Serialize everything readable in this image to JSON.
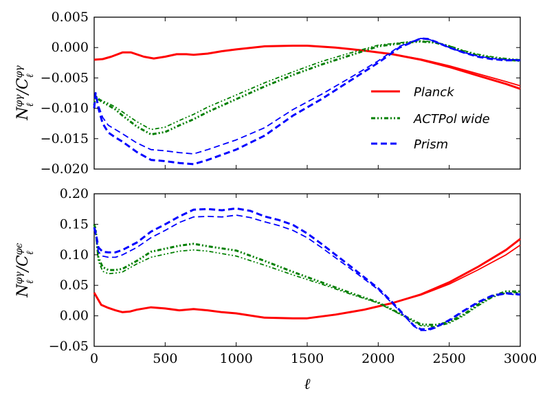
{
  "chart_data": [
    {
      "type": "line",
      "panel": "top",
      "ylabel": "N_ℓ^{φγ} / C_ℓ^{φγ}",
      "ylabel_parts": {
        "main1": "N",
        "main2": "/C",
        "sup": "φγ",
        "sub": "ℓ"
      },
      "xlim": [
        0,
        3000
      ],
      "ylim": [
        -0.02,
        0.005
      ],
      "xticks": [
        0,
        500,
        1000,
        1500,
        2000,
        2500,
        3000
      ],
      "yticks": [
        -0.02,
        -0.015,
        -0.01,
        -0.005,
        0.0,
        0.005
      ],
      "ytick_labels": [
        "−0.020",
        "−0.015",
        "−0.010",
        "−0.005",
        "0.000",
        "0.005"
      ],
      "grid": false,
      "legend": {
        "location": "right",
        "entries": [
          {
            "label": "Planck",
            "color": "#ff0000",
            "style": "solid"
          },
          {
            "label": "ACTPol wide",
            "color": "#007f00",
            "style": "dashdot"
          },
          {
            "label": "Prism",
            "color": "#0000ff",
            "style": "dashed"
          }
        ]
      },
      "series": [
        {
          "name": "Planck",
          "color": "#ff0000",
          "style": "solid",
          "width": 3,
          "x": [
            0,
            60,
            120,
            200,
            260,
            350,
            420,
            500,
            580,
            650,
            700,
            800,
            900,
            1000,
            1200,
            1400,
            1500,
            1700,
            1900,
            2100,
            2300,
            2500,
            2700,
            2900,
            3000
          ],
          "y": [
            -0.002,
            -0.0019,
            -0.0015,
            -0.0008,
            -0.0008,
            -0.0015,
            -0.0018,
            -0.0015,
            -0.0011,
            -0.0011,
            -0.0012,
            -0.001,
            -0.0006,
            -0.0003,
            0.0002,
            0.0003,
            0.0003,
            0.0,
            -0.0005,
            -0.0011,
            -0.002,
            -0.0032,
            -0.0046,
            -0.006,
            -0.0068
          ]
        },
        {
          "name": "Planck (variant)",
          "color": "#ff0000",
          "style": "solid",
          "width": 1.8,
          "x": [
            0,
            60,
            120,
            200,
            260,
            350,
            420,
            500,
            580,
            650,
            700,
            800,
            900,
            1000,
            1200,
            1400,
            1500,
            1700,
            1900,
            2100,
            2300,
            2500,
            2700,
            2900,
            3000
          ],
          "y": [
            -0.002,
            -0.0019,
            -0.0015,
            -0.0008,
            -0.0008,
            -0.0015,
            -0.0018,
            -0.0015,
            -0.0011,
            -0.0011,
            -0.0012,
            -0.001,
            -0.0006,
            -0.0003,
            0.0002,
            0.0003,
            0.0003,
            0.0,
            -0.0005,
            -0.0011,
            -0.0019,
            -0.003,
            -0.0043,
            -0.0056,
            -0.0063
          ]
        },
        {
          "name": "ACTPol wide",
          "color": "#007f00",
          "style": "dashdot",
          "width": 3,
          "x": [
            0,
            10,
            30,
            60,
            100,
            150,
            200,
            300,
            400,
            500,
            600,
            700,
            800,
            1000,
            1200,
            1400,
            1600,
            1800,
            2000,
            2200,
            2300,
            2400,
            2500,
            2600,
            2700,
            2800,
            2900,
            3000
          ],
          "y": [
            -0.0095,
            -0.008,
            -0.0085,
            -0.009,
            -0.0095,
            -0.0102,
            -0.0112,
            -0.013,
            -0.0143,
            -0.0139,
            -0.0128,
            -0.0118,
            -0.0106,
            -0.0085,
            -0.0064,
            -0.0045,
            -0.0028,
            -0.0013,
            0.0002,
            0.0008,
            0.001,
            0.0008,
            0.0002,
            -0.0006,
            -0.0013,
            -0.0017,
            -0.002,
            -0.0022
          ]
        },
        {
          "name": "ACTPol wide (variant)",
          "color": "#007f00",
          "style": "dashdot",
          "width": 1.8,
          "x": [
            0,
            10,
            30,
            60,
            100,
            150,
            200,
            300,
            400,
            500,
            600,
            700,
            800,
            1000,
            1200,
            1400,
            1600,
            1800,
            2000,
            2200,
            2300,
            2400,
            2500,
            2600,
            2700,
            2800,
            2900,
            3000
          ],
          "y": [
            -0.0095,
            -0.008,
            -0.0084,
            -0.0088,
            -0.0092,
            -0.0098,
            -0.0106,
            -0.0122,
            -0.0135,
            -0.0131,
            -0.012,
            -0.011,
            -0.0098,
            -0.0078,
            -0.0058,
            -0.004,
            -0.0023,
            -0.0009,
            0.0004,
            0.0009,
            0.0011,
            0.0009,
            0.0003,
            -0.0005,
            -0.0011,
            -0.0015,
            -0.0018,
            -0.002
          ]
        },
        {
          "name": "Prism",
          "color": "#0000ff",
          "style": "dashed",
          "width": 3,
          "x": [
            0,
            10,
            30,
            60,
            100,
            150,
            200,
            300,
            400,
            500,
            600,
            700,
            800,
            1000,
            1200,
            1400,
            1600,
            1800,
            2000,
            2150,
            2250,
            2300,
            2350,
            2400,
            2500,
            2600,
            2700,
            2800,
            2900,
            3000
          ],
          "y": [
            -0.01,
            -0.0075,
            -0.01,
            -0.0125,
            -0.014,
            -0.0148,
            -0.0155,
            -0.0172,
            -0.0185,
            -0.0187,
            -0.019,
            -0.0192,
            -0.0185,
            -0.0168,
            -0.0145,
            -0.0112,
            -0.0085,
            -0.0055,
            -0.0025,
            0.0,
            0.001,
            0.0015,
            0.0014,
            0.001,
            0.0,
            -0.0008,
            -0.0015,
            -0.0019,
            -0.0021,
            -0.0021
          ]
        },
        {
          "name": "Prism (variant)",
          "color": "#0000ff",
          "style": "dashed",
          "width": 1.8,
          "x": [
            0,
            10,
            30,
            60,
            100,
            150,
            200,
            300,
            400,
            500,
            600,
            700,
            800,
            1000,
            1200,
            1400,
            1600,
            1800,
            2000,
            2150,
            2250,
            2300,
            2350,
            2400,
            2500,
            2600,
            2700,
            2800,
            2900,
            3000
          ],
          "y": [
            -0.01,
            -0.0075,
            -0.0095,
            -0.0115,
            -0.0128,
            -0.0135,
            -0.0142,
            -0.0157,
            -0.0168,
            -0.017,
            -0.0173,
            -0.0175,
            -0.0168,
            -0.0152,
            -0.0132,
            -0.0102,
            -0.0077,
            -0.005,
            -0.0022,
            0.0002,
            0.0011,
            0.0015,
            0.0014,
            0.001,
            0.0,
            -0.0008,
            -0.0014,
            -0.0018,
            -0.002,
            -0.002
          ]
        }
      ]
    },
    {
      "type": "line",
      "panel": "bottom",
      "ylabel": "N_ℓ^{φγ} / C_ℓ^{φε}",
      "ylabel_parts": {
        "main1": "N",
        "main2": "/C",
        "sup1": "φγ",
        "sup2": "φϵ",
        "sub": "ℓ"
      },
      "xlabel": "ℓ",
      "xlim": [
        0,
        3000
      ],
      "ylim": [
        -0.05,
        0.2
      ],
      "xticks": [
        0,
        500,
        1000,
        1500,
        2000,
        2500,
        3000
      ],
      "xtick_labels": [
        "0",
        "500",
        "1000",
        "1500",
        "2000",
        "2500",
        "3000"
      ],
      "yticks": [
        -0.05,
        0.0,
        0.05,
        0.1,
        0.15,
        0.2
      ],
      "ytick_labels": [
        "−0.05",
        "0.00",
        "0.05",
        "0.10",
        "0.15",
        "0.20"
      ],
      "grid": false,
      "series": [
        {
          "name": "Planck",
          "color": "#ff0000",
          "style": "solid",
          "width": 3,
          "x": [
            0,
            20,
            50,
            100,
            150,
            200,
            250,
            300,
            400,
            500,
            600,
            700,
            800,
            900,
            1000,
            1200,
            1400,
            1500,
            1700,
            1900,
            2100,
            2300,
            2500,
            2700,
            2900,
            3000
          ],
          "y": [
            0.038,
            0.03,
            0.018,
            0.013,
            0.009,
            0.006,
            0.007,
            0.01,
            0.014,
            0.012,
            0.009,
            0.011,
            0.009,
            0.006,
            0.004,
            -0.003,
            -0.004,
            -0.004,
            0.002,
            0.01,
            0.021,
            0.035,
            0.055,
            0.08,
            0.108,
            0.126
          ]
        },
        {
          "name": "Planck (variant)",
          "color": "#ff0000",
          "style": "solid",
          "width": 1.8,
          "x": [
            0,
            20,
            50,
            100,
            150,
            200,
            250,
            300,
            400,
            500,
            600,
            700,
            800,
            900,
            1000,
            1200,
            1400,
            1500,
            1700,
            1900,
            2100,
            2300,
            2500,
            2700,
            2900,
            3000
          ],
          "y": [
            0.038,
            0.03,
            0.018,
            0.013,
            0.009,
            0.006,
            0.007,
            0.01,
            0.014,
            0.012,
            0.009,
            0.011,
            0.009,
            0.006,
            0.004,
            -0.003,
            -0.004,
            -0.004,
            0.002,
            0.01,
            0.021,
            0.034,
            0.052,
            0.075,
            0.1,
            0.116
          ]
        },
        {
          "name": "ACTPol wide",
          "color": "#007f00",
          "style": "dashdot",
          "width": 3,
          "x": [
            0,
            10,
            30,
            60,
            100,
            150,
            200,
            300,
            400,
            500,
            600,
            700,
            800,
            1000,
            1200,
            1400,
            1600,
            1800,
            2000,
            2100,
            2200,
            2300,
            2400,
            2500,
            2600,
            2700,
            2800,
            2900,
            3000
          ],
          "y": [
            0.15,
            0.142,
            0.095,
            0.08,
            0.075,
            0.075,
            0.077,
            0.09,
            0.105,
            0.11,
            0.115,
            0.118,
            0.114,
            0.107,
            0.09,
            0.072,
            0.055,
            0.038,
            0.022,
            0.01,
            -0.002,
            -0.014,
            -0.015,
            -0.01,
            0.002,
            0.018,
            0.032,
            0.04,
            0.04
          ]
        },
        {
          "name": "ACTPol wide (variant)",
          "color": "#007f00",
          "style": "dashdot",
          "width": 1.8,
          "x": [
            0,
            10,
            30,
            60,
            100,
            150,
            200,
            300,
            400,
            500,
            600,
            700,
            800,
            1000,
            1200,
            1400,
            1600,
            1800,
            2000,
            2100,
            2200,
            2300,
            2400,
            2500,
            2600,
            2700,
            2800,
            2900,
            3000
          ],
          "y": [
            0.145,
            0.135,
            0.09,
            0.073,
            0.069,
            0.07,
            0.072,
            0.085,
            0.096,
            0.101,
            0.106,
            0.108,
            0.106,
            0.098,
            0.083,
            0.067,
            0.052,
            0.036,
            0.021,
            0.009,
            -0.003,
            -0.016,
            -0.018,
            -0.012,
            0.0,
            0.016,
            0.03,
            0.038,
            0.038
          ]
        },
        {
          "name": "Prism",
          "color": "#0000ff",
          "style": "dashed",
          "width": 3,
          "x": [
            0,
            10,
            30,
            60,
            100,
            150,
            200,
            300,
            400,
            500,
            600,
            700,
            800,
            900,
            1000,
            1100,
            1200,
            1300,
            1400,
            1500,
            1600,
            1800,
            2000,
            2100,
            2200,
            2250,
            2300,
            2350,
            2400,
            2500,
            2600,
            2700,
            2800,
            2900,
            3000
          ],
          "y": [
            0.145,
            0.138,
            0.112,
            0.105,
            0.104,
            0.104,
            0.108,
            0.12,
            0.138,
            0.15,
            0.163,
            0.174,
            0.175,
            0.173,
            0.176,
            0.172,
            0.163,
            0.157,
            0.149,
            0.135,
            0.118,
            0.082,
            0.045,
            0.022,
            -0.003,
            -0.016,
            -0.022,
            -0.022,
            -0.019,
            -0.007,
            0.008,
            0.022,
            0.033,
            0.037,
            0.035
          ]
        },
        {
          "name": "Prism (variant)",
          "color": "#0000ff",
          "style": "dashed",
          "width": 1.8,
          "x": [
            0,
            10,
            30,
            60,
            100,
            150,
            200,
            300,
            400,
            500,
            600,
            700,
            800,
            900,
            1000,
            1100,
            1200,
            1300,
            1400,
            1500,
            1600,
            1800,
            2000,
            2100,
            2200,
            2250,
            2300,
            2350,
            2400,
            2500,
            2600,
            2700,
            2800,
            2900,
            3000
          ],
          "y": [
            0.142,
            0.133,
            0.105,
            0.098,
            0.096,
            0.096,
            0.1,
            0.112,
            0.128,
            0.14,
            0.153,
            0.162,
            0.163,
            0.162,
            0.165,
            0.161,
            0.154,
            0.148,
            0.14,
            0.128,
            0.112,
            0.078,
            0.043,
            0.02,
            -0.004,
            -0.017,
            -0.024,
            -0.024,
            -0.02,
            -0.008,
            0.007,
            0.021,
            0.032,
            0.036,
            0.034
          ]
        }
      ]
    }
  ]
}
